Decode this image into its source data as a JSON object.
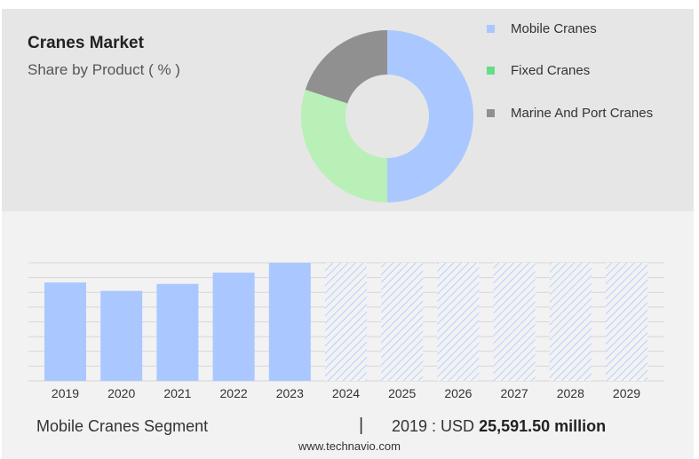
{
  "title": "Cranes Market",
  "subtitle": "Share by Product ( % )",
  "donut": {
    "segments": [
      {
        "label": "Mobile Cranes",
        "share": 50,
        "color": "#aac8ff"
      },
      {
        "label": "Fixed Cranes",
        "share": 30,
        "color": "#b8f0b8"
      },
      {
        "label": "Marine And Port Cranes",
        "share": 20,
        "color": "#909090"
      }
    ]
  },
  "legend": [
    {
      "label": "Mobile Cranes",
      "color": "#aac8ff",
      "swatch_color": "#aac8ff"
    },
    {
      "label": "Fixed Cranes",
      "color": "#b8f0b8",
      "swatch_color": "#66dd88"
    },
    {
      "label": "Marine And Port Cranes",
      "color": "#909090",
      "swatch_color": "#909090"
    }
  ],
  "chart_data": {
    "type": "bar",
    "categories": [
      "2019",
      "2020",
      "2021",
      "2022",
      "2023",
      "2024",
      "2025",
      "2026",
      "2027",
      "2028",
      "2029"
    ],
    "values": [
      70,
      64,
      69,
      77,
      84,
      null,
      null,
      null,
      null,
      null,
      null
    ],
    "forecast_placeholder": [
      false,
      false,
      false,
      false,
      false,
      true,
      true,
      true,
      true,
      true,
      true
    ],
    "ylim": [
      0,
      100
    ],
    "bar_color": "#aac8ff",
    "hatch_color": "#aac8ff",
    "grid": true
  },
  "footer": {
    "segment_label": "Mobile Cranes Segment",
    "separator": "|",
    "value_prefix": "2019 : USD",
    "value_bold": "25,591.50 million"
  },
  "source": "www.technavio.com"
}
